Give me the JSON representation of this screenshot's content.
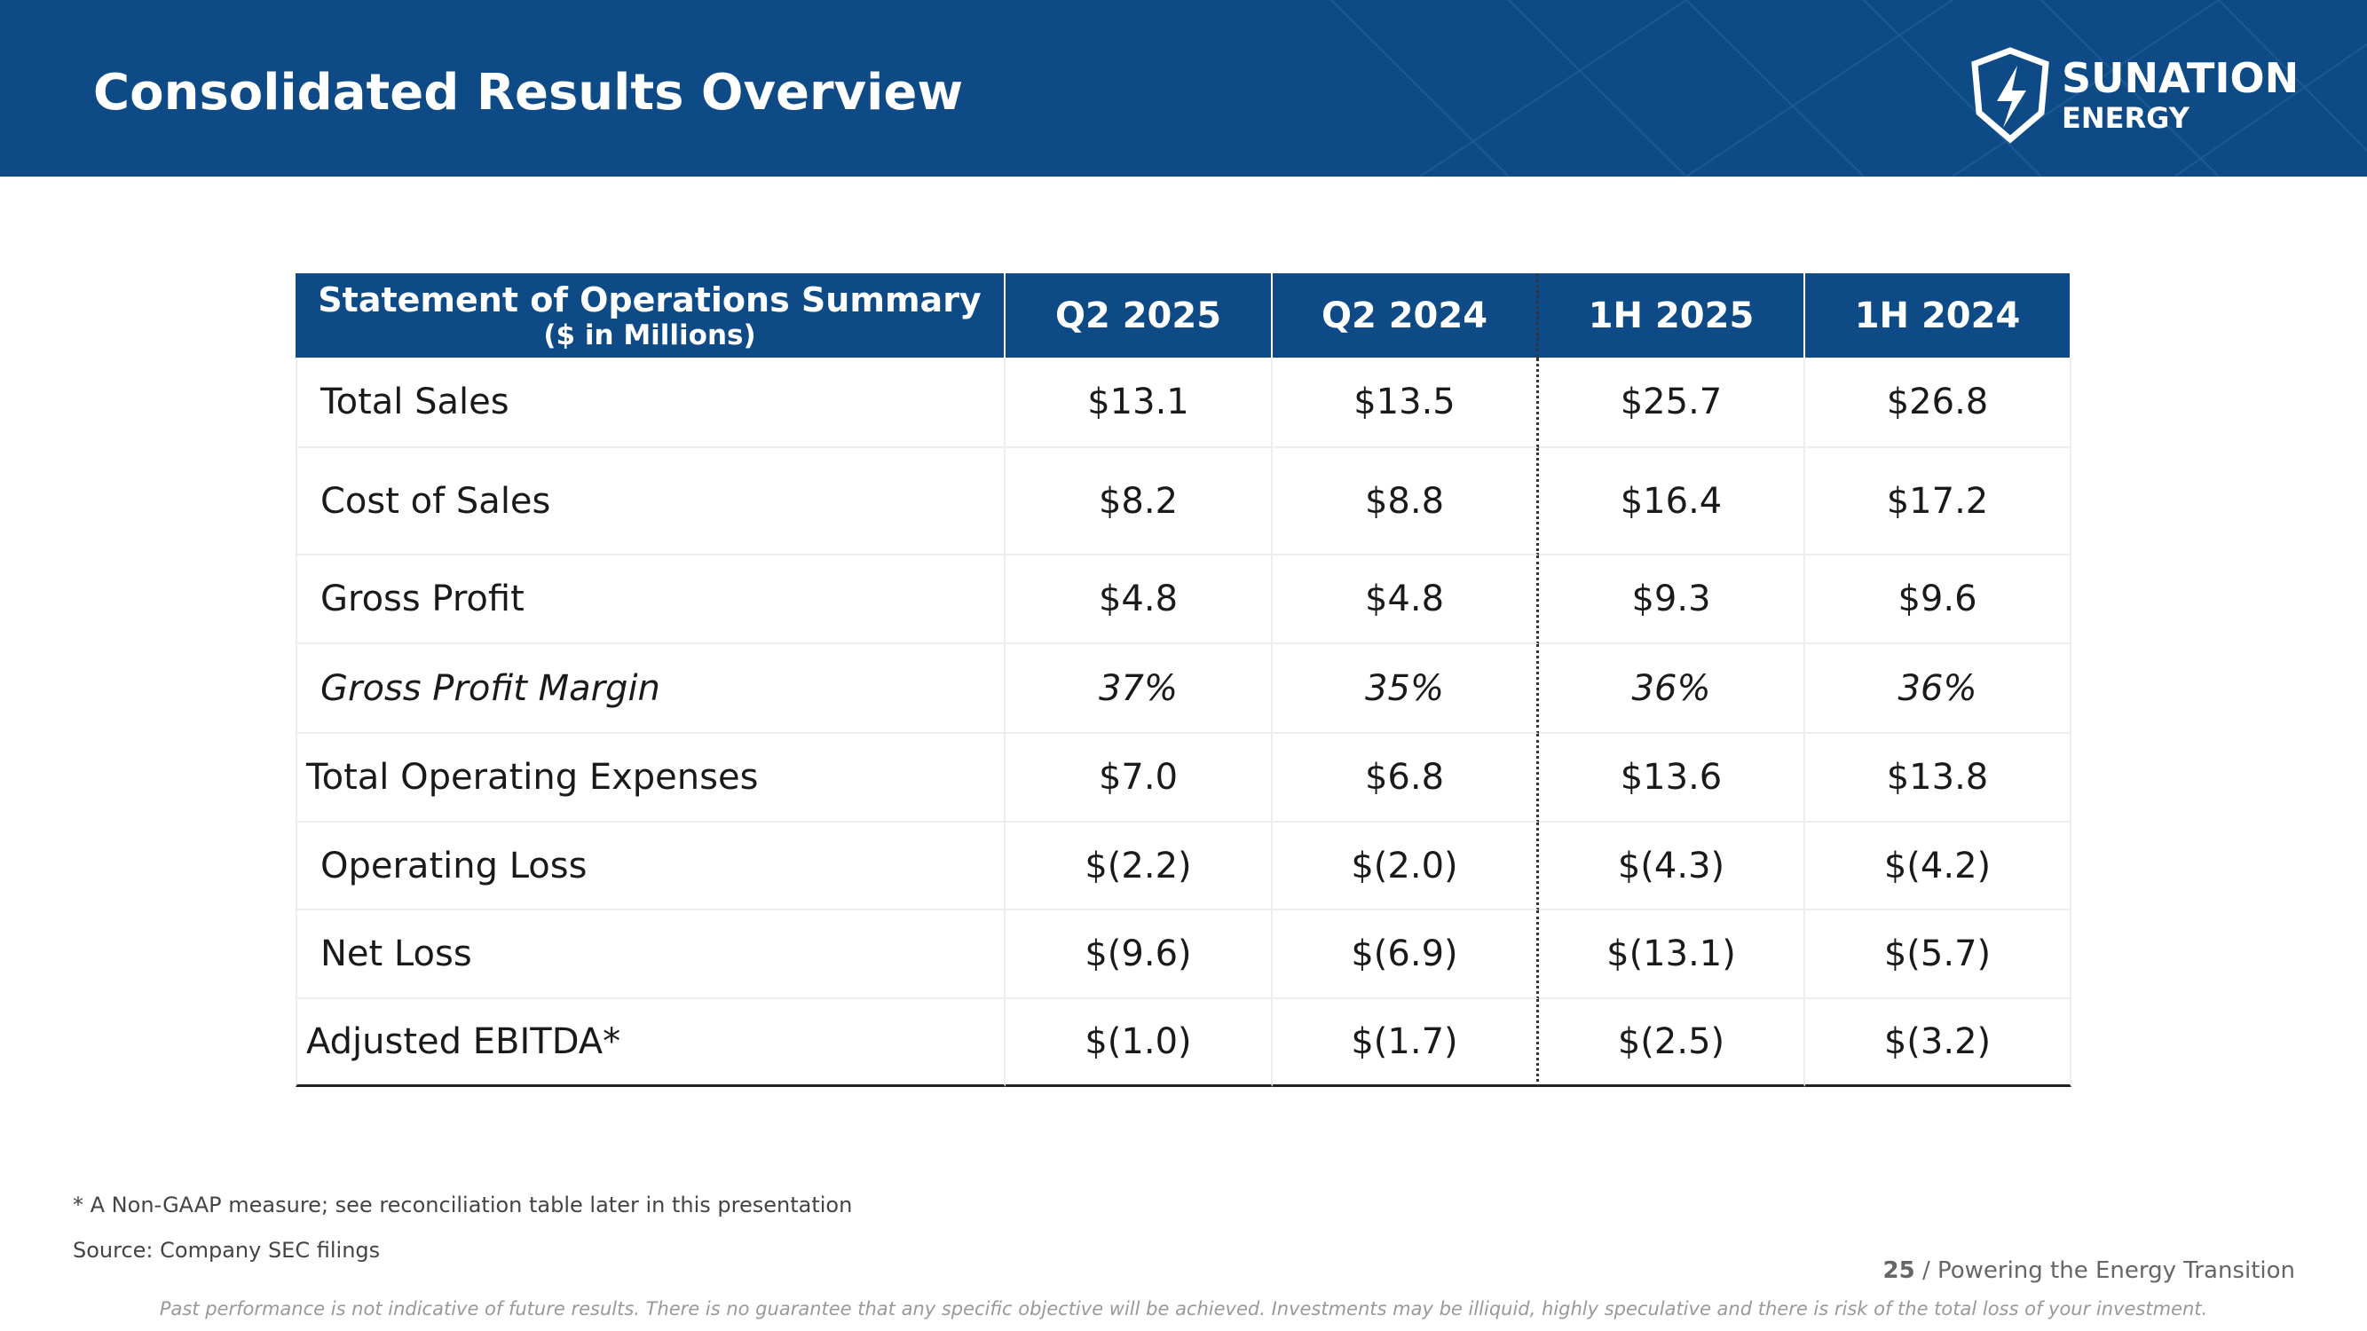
{
  "header": {
    "title": "Consolidated Results Overview",
    "logo": {
      "name": "SUNATION",
      "sub": "ENERGY"
    }
  },
  "table": {
    "header": {
      "title": "Statement of Operations Summary",
      "subtitle": "($ in Millions)",
      "columns": [
        "Q2 2025",
        "Q2 2024",
        "1H 2025",
        "1H 2024"
      ]
    },
    "rows": [
      [
        "Total Sales",
        "$13.1",
        "$13.5",
        "$25.7",
        "$26.8"
      ],
      [
        "Cost of Sales",
        "$8.2",
        "$8.8",
        "$16.4",
        "$17.2"
      ],
      [
        "Gross Profit",
        "$4.8",
        "$4.8",
        "$9.3",
        "$9.6"
      ],
      [
        "Gross Profit Margin",
        "37%",
        "35%",
        "36%",
        "36%"
      ],
      [
        "Total Operating Expenses",
        "$7.0",
        "$6.8",
        "$13.6",
        "$13.8"
      ],
      [
        "Operating Loss",
        "$(2.2)",
        "$(2.0)",
        "$(4.3)",
        "$(4.2)"
      ],
      [
        "Net Loss",
        "$(9.6)",
        "$(6.9)",
        "$(13.1)",
        "$(5.7)"
      ],
      [
        "Adjusted EBITDA*",
        "$(1.0)",
        "$(1.7)",
        "$(2.5)",
        "$(3.2)"
      ]
    ]
  },
  "footnotes": [
    "* A Non-GAAP measure; see reconciliation table later in this presentation",
    "Source:  Company SEC filings"
  ],
  "footer": {
    "page": "25",
    "tagline": "/ Powering the Energy Transition",
    "disclaimer": "Past performance is not indicative of future results. There is no guarantee that any specific objective will be achieved. Investments may be illiquid, highly speculative and there is risk of the total loss of your investment."
  }
}
